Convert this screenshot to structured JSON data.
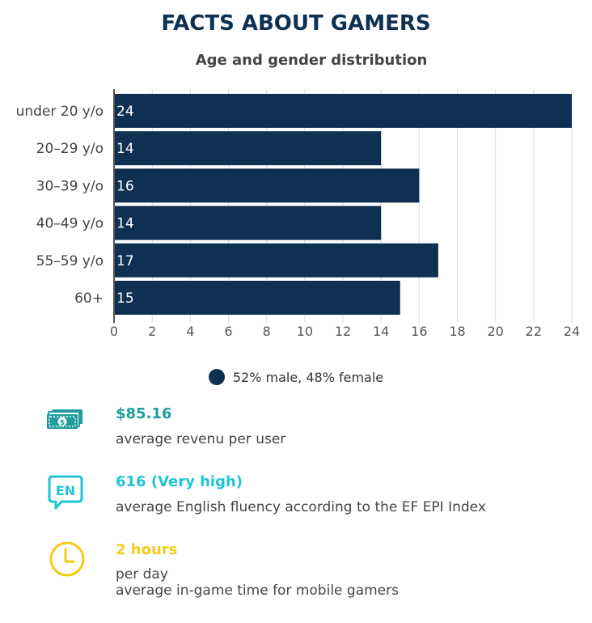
{
  "title": "FACTS ABOUT GAMERS",
  "subtitle": "Age and gender distribution",
  "colors": {
    "bar": "#0e3153",
    "money": "#1e9ea0",
    "english": "#21c4d6",
    "time": "#f3cc18"
  },
  "chart_data": {
    "type": "bar",
    "orientation": "horizontal",
    "categories": [
      "under 20 y/o",
      "20–29 y/o",
      "30–39 y/o",
      "40–49 y/o",
      "55–59 y/o",
      "60+"
    ],
    "values": [
      24,
      14,
      16,
      14,
      17,
      15
    ],
    "xlim": [
      0,
      24
    ],
    "xticks": [
      0,
      2,
      4,
      6,
      8,
      10,
      12,
      14,
      16,
      18,
      20,
      22,
      24
    ],
    "grid": true,
    "legend_placement": "bottom",
    "legend": "52% male, 48% female"
  },
  "facts": [
    {
      "icon": "money-icon",
      "value": "$85.16",
      "description": "average revenu per user"
    },
    {
      "icon": "english-speech-icon",
      "icon_text": "EN",
      "value": "616 (Very high)",
      "description": "average English fluency according to the EF EPI Index"
    },
    {
      "icon": "clock-icon",
      "value": "2 hours",
      "description": "per day",
      "description2": "average in-game time for mobile gamers"
    }
  ]
}
